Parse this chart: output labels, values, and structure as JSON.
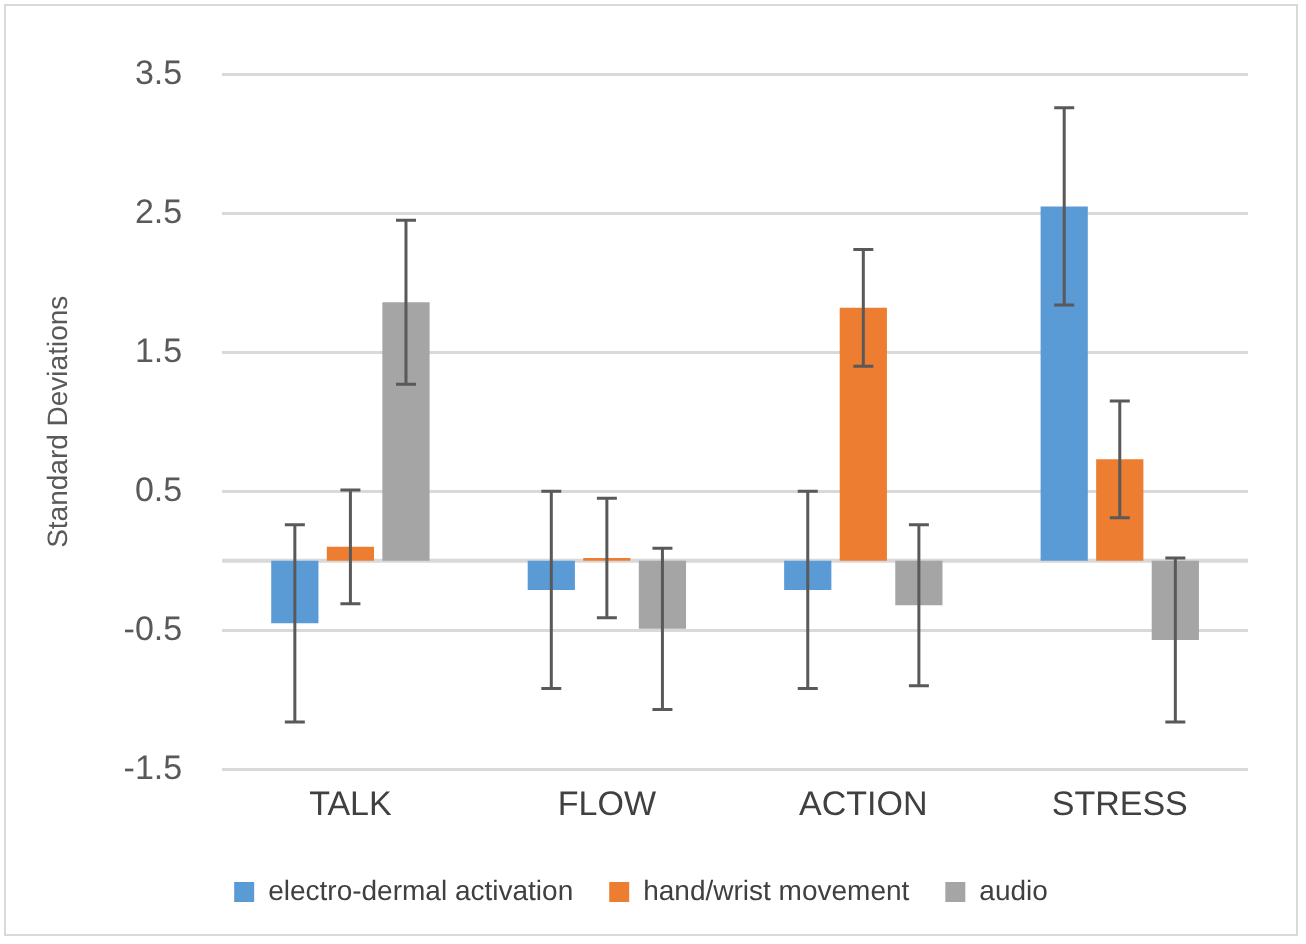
{
  "chart_data": {
    "type": "bar",
    "ylabel": "Standard Deviations",
    "categories": [
      "TALK",
      "FLOW",
      "ACTION",
      "STRESS"
    ],
    "series": [
      {
        "name": "electro-dermal activation",
        "color": "#5b9bd5",
        "values": [
          -0.45,
          -0.21,
          -0.21,
          2.55
        ],
        "errors": [
          0.71,
          0.71,
          0.71,
          0.71
        ]
      },
      {
        "name": "hand/wrist movement",
        "color": "#ed7d31",
        "values": [
          0.1,
          0.02,
          1.82,
          0.73
        ],
        "errors": [
          0.41,
          0.43,
          0.42,
          0.42
        ]
      },
      {
        "name": "audio",
        "color": "#a5a5a5",
        "values": [
          1.86,
          -0.49,
          -0.32,
          -0.57
        ],
        "errors": [
          0.59,
          0.58,
          0.58,
          0.59
        ]
      }
    ],
    "ylim": [
      -1.5,
      3.5
    ],
    "yticks": [
      -1.5,
      -0.5,
      0.5,
      1.5,
      2.5,
      3.5
    ],
    "grid": "y",
    "legend": "bottom"
  }
}
